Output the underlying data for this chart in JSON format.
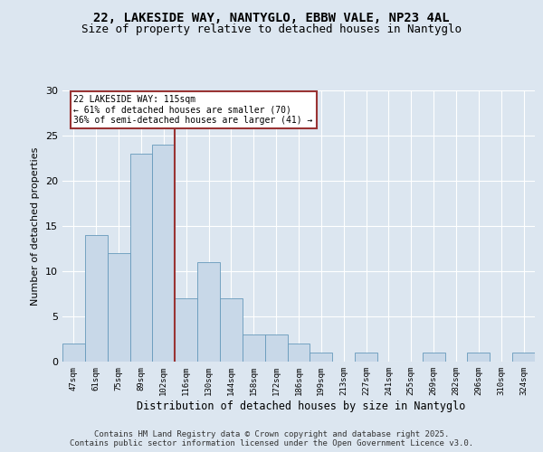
{
  "title1": "22, LAKESIDE WAY, NANTYGLO, EBBW VALE, NP23 4AL",
  "title2": "Size of property relative to detached houses in Nantyglo",
  "xlabel": "Distribution of detached houses by size in Nantyglo",
  "ylabel": "Number of detached properties",
  "bins": [
    "47sqm",
    "61sqm",
    "75sqm",
    "89sqm",
    "102sqm",
    "116sqm",
    "130sqm",
    "144sqm",
    "158sqm",
    "172sqm",
    "186sqm",
    "199sqm",
    "213sqm",
    "227sqm",
    "241sqm",
    "255sqm",
    "269sqm",
    "282sqm",
    "296sqm",
    "310sqm",
    "324sqm"
  ],
  "values": [
    2,
    14,
    12,
    23,
    24,
    7,
    11,
    7,
    3,
    3,
    2,
    1,
    0,
    1,
    0,
    0,
    1,
    0,
    1,
    0,
    1
  ],
  "bar_color": "#c8d8e8",
  "bar_edge_color": "#6699bb",
  "vline_x_idx": 5,
  "vline_color": "#993333",
  "annotation_line1": "22 LAKESIDE WAY: 115sqm",
  "annotation_line2": "← 61% of detached houses are smaller (70)",
  "annotation_line3": "36% of semi-detached houses are larger (41) →",
  "annotation_box_edge_color": "#993333",
  "ylim": [
    0,
    30
  ],
  "yticks": [
    0,
    5,
    10,
    15,
    20,
    25,
    30
  ],
  "bg_color": "#dce6f0",
  "footer_text": "Contains HM Land Registry data © Crown copyright and database right 2025.\nContains public sector information licensed under the Open Government Licence v3.0.",
  "title_fontsize": 10,
  "subtitle_fontsize": 9,
  "footer_fontsize": 6.5
}
